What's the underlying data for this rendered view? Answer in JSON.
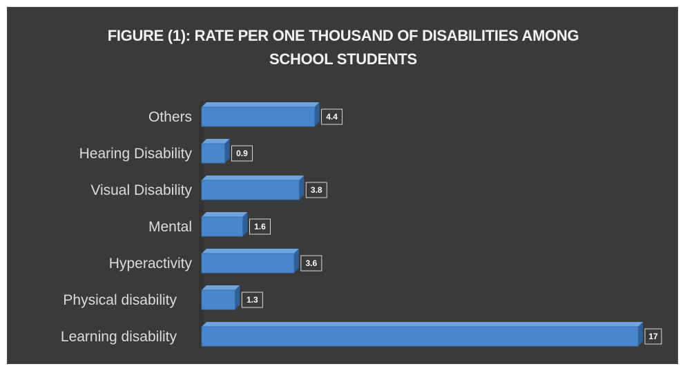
{
  "chart_data": {
    "type": "bar",
    "orientation": "horizontal",
    "title_lines": [
      "FIGURE (1): RATE PER ONE THOUSAND OF DISABILITIES AMONG",
      "SCHOOL STUDENTS"
    ],
    "categories": [
      "Others",
      "Hearing Disability",
      "Visual Disability",
      "Mental",
      "Hyperactivity",
      "Physical  disability",
      "Learning disability"
    ],
    "values": [
      4.4,
      0.9,
      3.8,
      1.6,
      3.6,
      1.3,
      17
    ],
    "data_labels": [
      "4.4",
      "0.9",
      "3.8",
      "1.6",
      "3.6",
      "1.3",
      "17"
    ],
    "xlim": [
      0,
      17
    ],
    "grid": false,
    "legend": "none",
    "colors": {
      "bar": "#4a86cc",
      "bar_top": "#6ea3dc",
      "bar_side": "#2f5f99",
      "background": "#3a3a3a",
      "label_box": "#3a3a3a"
    }
  }
}
